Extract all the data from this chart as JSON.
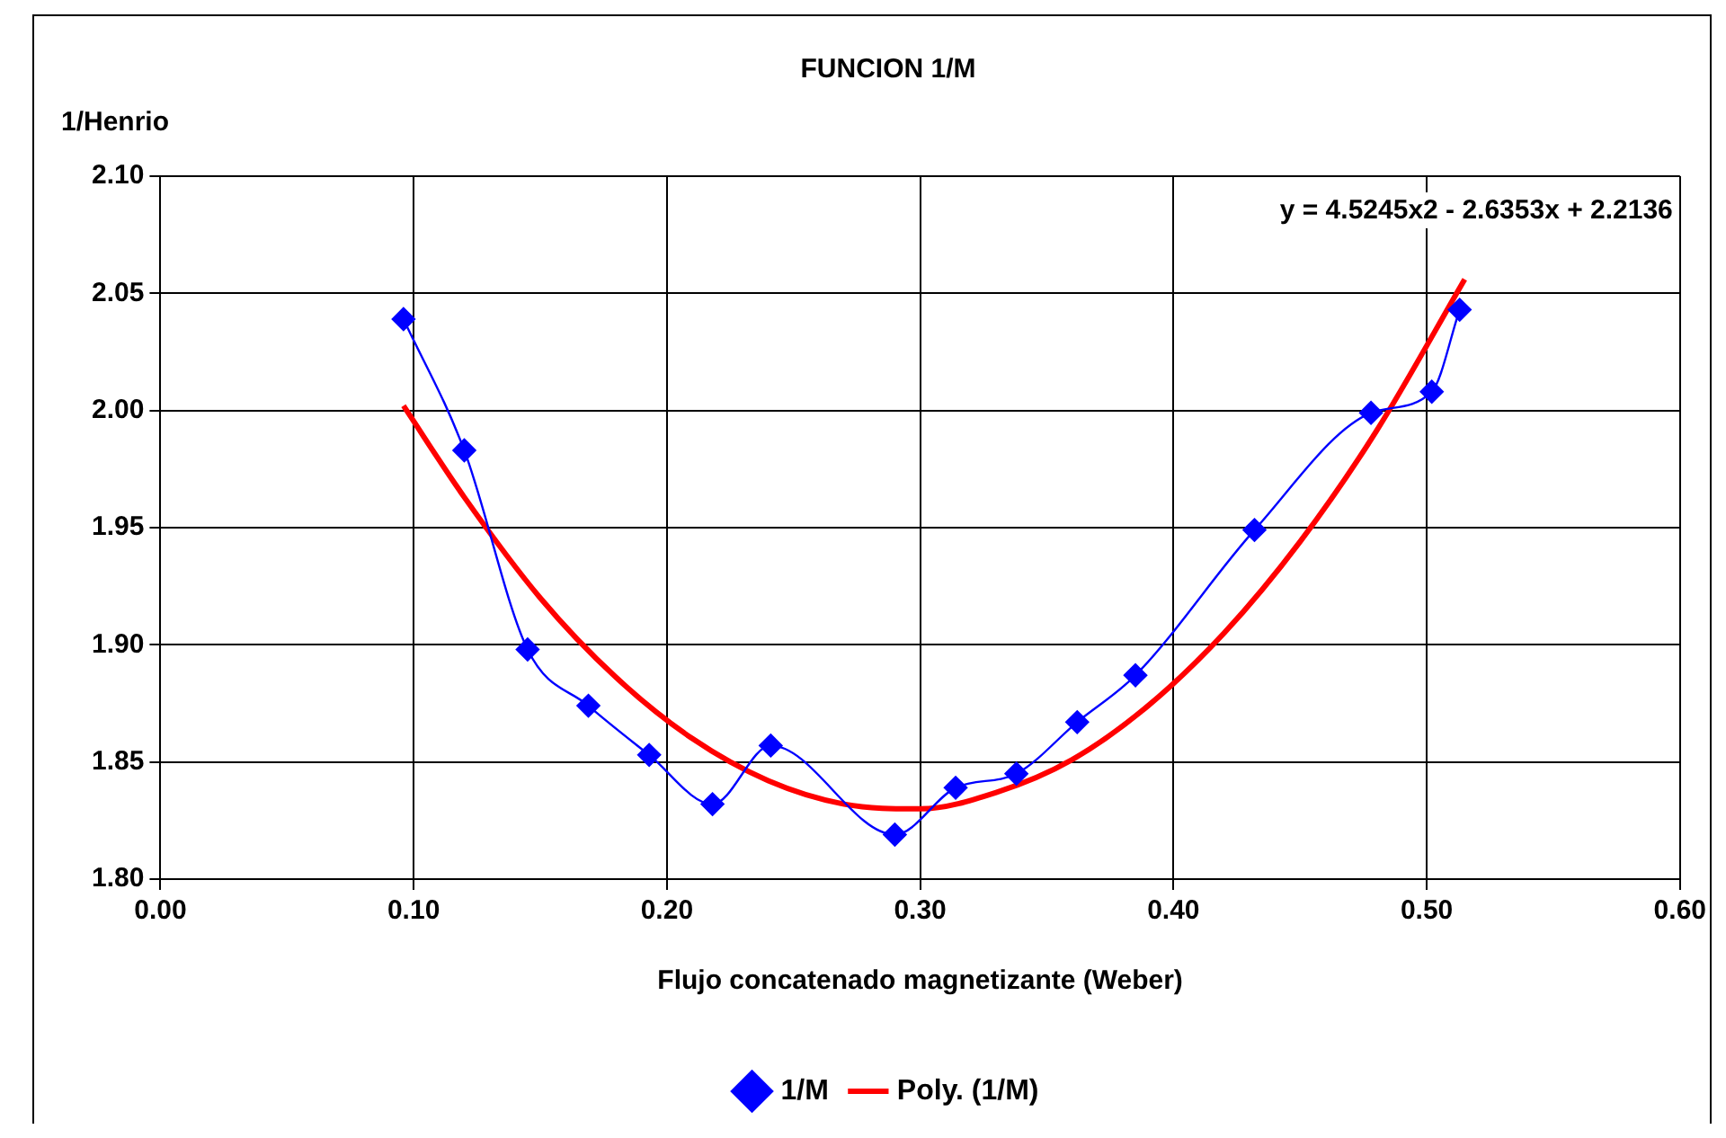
{
  "chart_data": {
    "type": "line",
    "title": "FUNCION 1/M",
    "xlabel": "Flujo concatenado magnetizante (Weber)",
    "ylabel": "1/Henrio",
    "annotations": [
      "y = 4.5245x2 - 2.6353x + 2.2136"
    ],
    "series": [
      {
        "name": "1/M",
        "color": "#0000ff",
        "marker": "diamond",
        "x": [
          0.096,
          0.12,
          0.145,
          0.169,
          0.193,
          0.218,
          0.241,
          0.29,
          0.314,
          0.338,
          0.362,
          0.385,
          0.432,
          0.478,
          0.502,
          0.513
        ],
        "values": [
          2.039,
          1.983,
          1.898,
          1.874,
          1.853,
          1.832,
          1.857,
          1.819,
          1.839,
          1.845,
          1.867,
          1.887,
          1.949,
          1.999,
          2.008,
          2.043
        ]
      },
      {
        "name": "Poly. (1/M)",
        "color": "#ff0000",
        "marker": "none",
        "x": [
          0.096,
          0.12,
          0.15,
          0.18,
          0.21,
          0.24,
          0.27,
          0.3,
          0.33,
          0.36,
          0.39,
          0.42,
          0.45,
          0.48,
          0.515
        ],
        "values": [
          2.002,
          1.963,
          1.92,
          1.886,
          1.86,
          1.842,
          1.832,
          1.83,
          1.837,
          1.851,
          1.874,
          1.905,
          1.944,
          1.991,
          2.056
        ]
      }
    ],
    "xlim": [
      0,
      0.6
    ],
    "xticks": [
      {
        "value": 0,
        "label": "0.00"
      },
      {
        "value": 0.1,
        "label": "0.10"
      },
      {
        "value": 0.2,
        "label": "0.20"
      },
      {
        "value": 0.3,
        "label": "0.30"
      },
      {
        "value": 0.4,
        "label": "0.40"
      },
      {
        "value": 0.5,
        "label": "0.50"
      },
      {
        "value": 0.6,
        "label": "0.60"
      }
    ],
    "ylim": [
      1.8,
      2.1
    ],
    "yticks": [
      {
        "value": 1.8,
        "label": "1.80"
      },
      {
        "value": 1.85,
        "label": "1.85"
      },
      {
        "value": 1.9,
        "label": "1.90"
      },
      {
        "value": 1.95,
        "label": "1.95"
      },
      {
        "value": 2.0,
        "label": "2.00"
      },
      {
        "value": 2.05,
        "label": "2.05"
      },
      {
        "value": 2.1,
        "label": "2.10"
      }
    ],
    "grid": true,
    "legend": "bottom",
    "line_style": "solid"
  }
}
